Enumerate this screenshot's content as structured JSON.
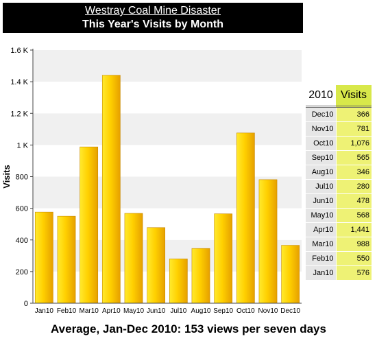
{
  "header": {
    "link_text": "Westray Coal Mine Disaster",
    "title": "This Year's Visits by Month"
  },
  "table": {
    "year_label": "2010",
    "value_label": "Visits",
    "rows": [
      {
        "month": "Dec10",
        "value": "366"
      },
      {
        "month": "Nov10",
        "value": "781"
      },
      {
        "month": "Oct10",
        "value": "1,076"
      },
      {
        "month": "Sep10",
        "value": "565"
      },
      {
        "month": "Aug10",
        "value": "346"
      },
      {
        "month": "Jul10",
        "value": "280"
      },
      {
        "month": "Jun10",
        "value": "478"
      },
      {
        "month": "May10",
        "value": "568"
      },
      {
        "month": "Apr10",
        "value": "1,441"
      },
      {
        "month": "Mar10",
        "value": "988"
      },
      {
        "month": "Feb10",
        "value": "550"
      },
      {
        "month": "Jan10",
        "value": "576"
      }
    ]
  },
  "footer": {
    "text": "Average, Jan-Dec 2010:  153 views per seven days"
  },
  "chart_data": {
    "type": "bar",
    "categories": [
      "Jan10",
      "Feb10",
      "Mar10",
      "Apr10",
      "May10",
      "Jun10",
      "Jul10",
      "Aug10",
      "Sep10",
      "Oct10",
      "Nov10",
      "Dec10"
    ],
    "values": [
      576,
      550,
      988,
      1441,
      568,
      478,
      280,
      346,
      565,
      1076,
      781,
      366
    ],
    "ylabel": "Visits",
    "xlabel": "",
    "ylim": [
      0,
      1600
    ],
    "yticks": [
      0,
      200,
      400,
      600,
      800,
      1000,
      1200,
      1400,
      1600
    ],
    "ytick_labels": [
      "0",
      "200",
      "400",
      "600",
      "800",
      "1 K",
      "1.2 K",
      "1.4 K",
      "1.6 K"
    ],
    "grid": "alternating horizontal bands",
    "bar_color": "#f0b800",
    "bar_highlight": "#ffe400"
  }
}
